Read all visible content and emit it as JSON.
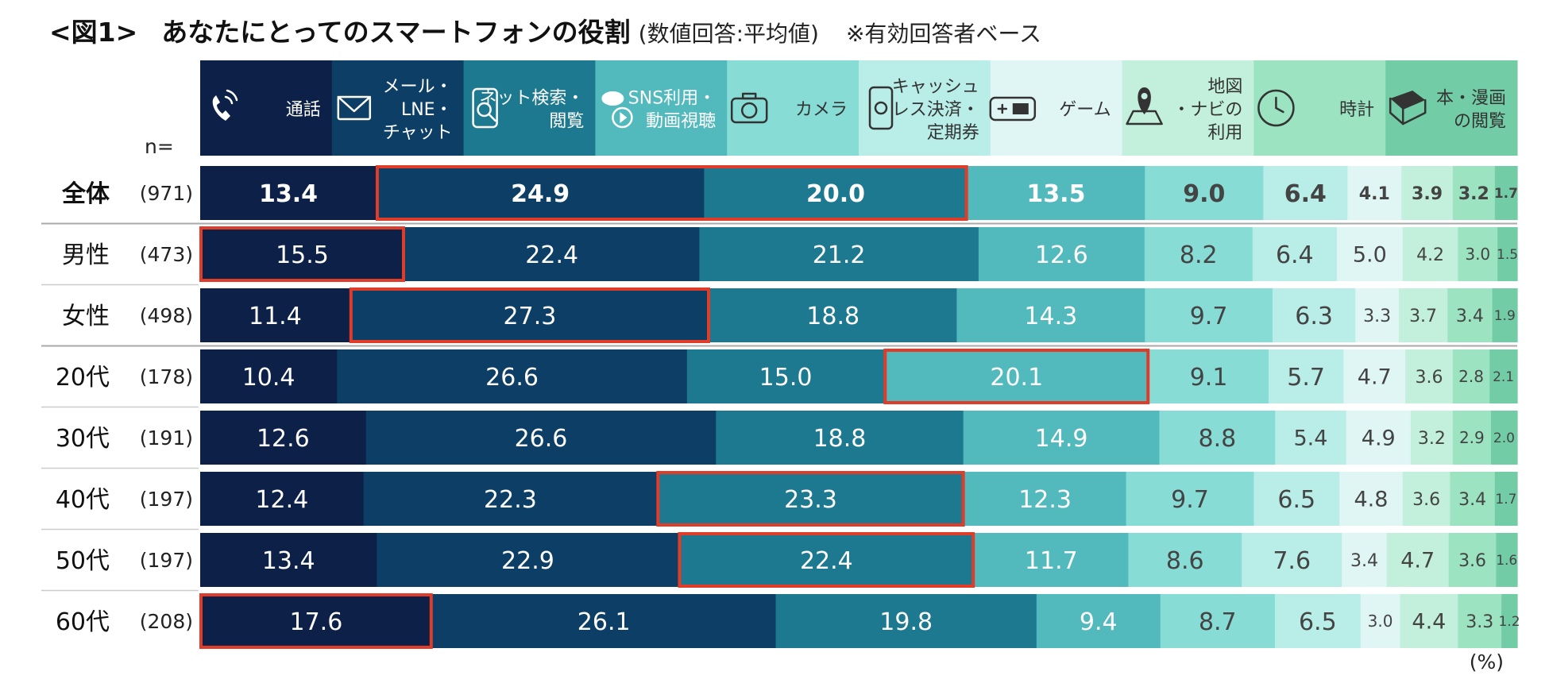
{
  "title": {
    "figure_label": "<図1>",
    "main": "あなたにとってのスマートフォンの役割",
    "note": "(数値回答:平均値)",
    "base": "※有効回答者ベース"
  },
  "n_label": "n=",
  "unit_label": "(%)",
  "colors": [
    "#0c2048",
    "#0d3f66",
    "#1d7990",
    "#52b9bd",
    "#87dcd6",
    "#b9ede8",
    "#e0f6f4",
    "#c3f0dc",
    "#9be3c1",
    "#72cda7"
  ],
  "header_text_colors": [
    "#ffffff",
    "#ffffff",
    "#ffffff",
    "#ffffff",
    "#333333",
    "#333333",
    "#333333",
    "#333333",
    "#333333",
    "#333333"
  ],
  "legend": [
    {
      "icon": "phone-icon",
      "lines": [
        "通話"
      ]
    },
    {
      "icon": "envelope-icon",
      "lines": [
        "メール・",
        "LNE・",
        "チャット"
      ]
    },
    {
      "icon": "web-search-icon",
      "lines": [
        "ネット検索・",
        "閲覧"
      ]
    },
    {
      "icon": "sns-video-icon",
      "lines": [
        "SNS利用・",
        "動画視聴"
      ]
    },
    {
      "icon": "camera-icon",
      "lines": [
        "カメラ"
      ]
    },
    {
      "icon": "cashless-payment-icon",
      "lines": [
        "キャッシュ",
        "レス決済・",
        "定期券"
      ]
    },
    {
      "icon": "game-controller-icon",
      "lines": [
        "ゲーム"
      ]
    },
    {
      "icon": "map-pin-icon",
      "lines": [
        "地図",
        "・ナビの",
        "利用"
      ]
    },
    {
      "icon": "clock-icon",
      "lines": [
        "時計"
      ]
    },
    {
      "icon": "book-icon",
      "lines": [
        "本・漫画",
        "の閲覧"
      ]
    }
  ],
  "chart_data": {
    "type": "bar",
    "orientation": "horizontal",
    "stacked": true,
    "unit": "%",
    "series": [
      "通話",
      "メール・LNE・チャット",
      "ネット検索・閲覧",
      "SNS利用・動画視聴",
      "カメラ",
      "キャッシュレス決済・定期券",
      "ゲーム",
      "地図・ナビの利用",
      "時計",
      "本・漫画の閲覧"
    ],
    "rows": [
      {
        "label": "全体",
        "n": "(971)",
        "bold": true,
        "values": [
          13.4,
          24.9,
          20.0,
          13.5,
          9.0,
          6.4,
          4.1,
          3.9,
          3.2,
          1.7
        ],
        "highlight": [
          1,
          2
        ]
      },
      {
        "label": "男性",
        "n": "(473)",
        "values": [
          15.5,
          22.4,
          21.2,
          12.6,
          8.2,
          6.4,
          5.0,
          4.2,
          3.0,
          1.5
        ],
        "highlight": [
          0,
          0
        ]
      },
      {
        "label": "女性",
        "n": "(498)",
        "values": [
          11.4,
          27.3,
          18.8,
          14.3,
          9.7,
          6.3,
          3.3,
          3.7,
          3.4,
          1.9
        ],
        "highlight": [
          1,
          1
        ]
      },
      {
        "label": "20代",
        "n": "(178)",
        "values": [
          10.4,
          26.6,
          15.0,
          20.1,
          9.1,
          5.7,
          4.7,
          3.6,
          2.8,
          2.1
        ],
        "highlight": [
          3,
          3
        ]
      },
      {
        "label": "30代",
        "n": "(191)",
        "values": [
          12.6,
          26.6,
          18.8,
          14.9,
          8.8,
          5.4,
          4.9,
          3.2,
          2.9,
          2.0
        ]
      },
      {
        "label": "40代",
        "n": "(197)",
        "values": [
          12.4,
          22.3,
          23.3,
          12.3,
          9.7,
          6.5,
          4.8,
          3.6,
          3.4,
          1.7
        ],
        "highlight": [
          2,
          2
        ]
      },
      {
        "label": "50代",
        "n": "(197)",
        "values": [
          13.4,
          22.9,
          22.4,
          11.7,
          8.6,
          7.6,
          3.4,
          4.7,
          3.6,
          1.6
        ],
        "highlight": [
          2,
          2
        ]
      },
      {
        "label": "60代",
        "n": "(208)",
        "values": [
          17.6,
          26.1,
          19.8,
          9.4,
          8.7,
          6.5,
          3.0,
          4.4,
          3.3,
          1.2
        ],
        "highlight": [
          0,
          0
        ]
      }
    ]
  }
}
